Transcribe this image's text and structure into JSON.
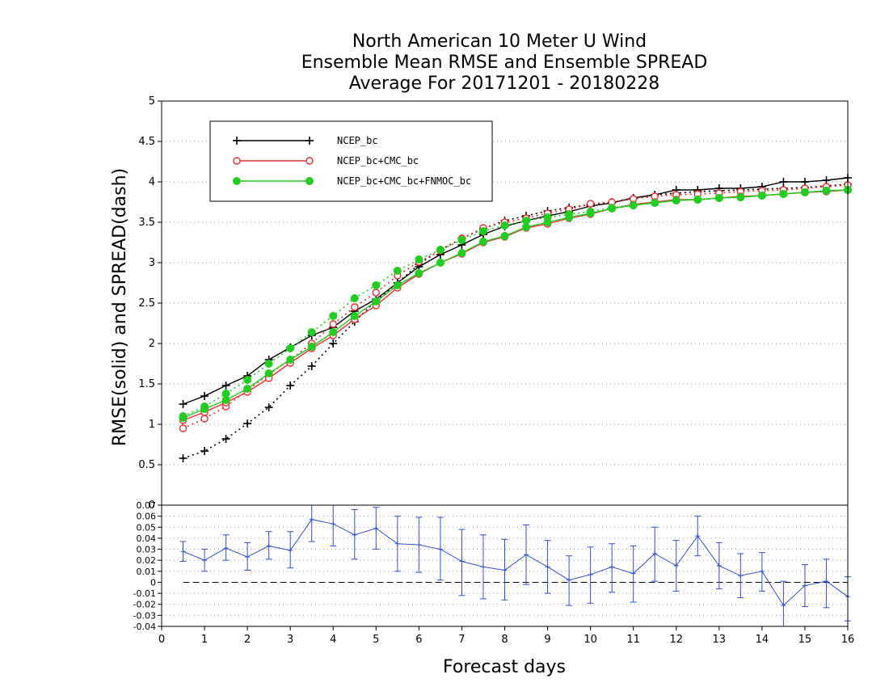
{
  "chart_data": [
    {
      "type": "line",
      "title": [
        "North American 10 Meter U Wind",
        "Ensemble Mean RMSE and Ensemble SPREAD",
        "Average For 20171201 - 20180228"
      ],
      "ylabel": "RMSE(solid)  and  SPREAD(dash)",
      "xlabel": "Forecast days",
      "xlim": [
        0,
        16
      ],
      "ylim": [
        0,
        5
      ],
      "x_ticks": [
        "0",
        "1",
        "2",
        "3",
        "4",
        "5",
        "6",
        "7",
        "8",
        "9",
        "10",
        "11",
        "12",
        "13",
        "14",
        "15",
        "16"
      ],
      "y_ticks": [
        "0.5",
        "1",
        "1.5",
        "2",
        "2.5",
        "3",
        "3.5",
        "4",
        "4.5",
        "5"
      ],
      "grid": "horizontal dotted",
      "legend_position": "top-left",
      "x": [
        0.5,
        1,
        1.5,
        2,
        2.5,
        3,
        3.5,
        4,
        4.5,
        5,
        5.5,
        6,
        6.5,
        7,
        7.5,
        8,
        8.5,
        9,
        9.5,
        10,
        10.5,
        11,
        11.5,
        12,
        12.5,
        13,
        13.5,
        14,
        14.5,
        15,
        15.5,
        16
      ],
      "series": [
        {
          "name": "NCEP_bc",
          "color": "#000000",
          "marker": "plus",
          "rmse": [
            1.25,
            1.35,
            1.48,
            1.6,
            1.8,
            1.95,
            2.1,
            2.2,
            2.4,
            2.55,
            2.75,
            2.95,
            3.1,
            3.22,
            3.35,
            3.45,
            3.52,
            3.58,
            3.63,
            3.7,
            3.74,
            3.8,
            3.84,
            3.9,
            3.9,
            3.92,
            3.92,
            3.94,
            4.0,
            4.0,
            4.02,
            4.05
          ],
          "spread": [
            0.58,
            0.67,
            0.82,
            1.01,
            1.21,
            1.48,
            1.72,
            2.0,
            2.27,
            2.53,
            2.75,
            2.98,
            3.16,
            3.3,
            3.42,
            3.52,
            3.58,
            3.64,
            3.68,
            3.72,
            3.75,
            3.8,
            3.84,
            3.86,
            3.88,
            3.89,
            3.9,
            3.91,
            3.92,
            3.93,
            3.95,
            3.97
          ]
        },
        {
          "name": "NCEP_bc+CMC_bc",
          "color": "#e83030",
          "marker": "open-circle",
          "rmse": [
            1.05,
            1.15,
            1.27,
            1.4,
            1.57,
            1.76,
            1.94,
            2.1,
            2.3,
            2.47,
            2.69,
            2.86,
            3.0,
            3.11,
            3.25,
            3.32,
            3.43,
            3.48,
            3.55,
            3.6,
            3.67,
            3.72,
            3.75,
            3.78,
            3.78,
            3.8,
            3.82,
            3.83,
            3.85,
            3.87,
            3.88,
            3.9
          ],
          "spread": [
            0.95,
            1.07,
            1.22,
            1.42,
            1.62,
            1.8,
            2.0,
            2.24,
            2.45,
            2.63,
            2.84,
            3.01,
            3.15,
            3.3,
            3.43,
            3.5,
            3.55,
            3.61,
            3.66,
            3.73,
            3.75,
            3.79,
            3.82,
            3.84,
            3.85,
            3.86,
            3.88,
            3.89,
            3.9,
            3.92,
            3.94,
            3.96
          ]
        },
        {
          "name": "NCEP_bc+CMC_bc+FNMOC_bc",
          "color": "#22cc22",
          "marker": "filled-circle",
          "rmse": [
            1.08,
            1.19,
            1.3,
            1.44,
            1.63,
            1.8,
            1.96,
            2.14,
            2.34,
            2.52,
            2.72,
            2.87,
            3.0,
            3.12,
            3.26,
            3.33,
            3.44,
            3.5,
            3.56,
            3.61,
            3.67,
            3.71,
            3.74,
            3.77,
            3.78,
            3.8,
            3.81,
            3.83,
            3.85,
            3.87,
            3.89,
            3.9
          ],
          "spread": [
            1.1,
            1.22,
            1.38,
            1.55,
            1.75,
            1.94,
            2.14,
            2.34,
            2.56,
            2.72,
            2.9,
            3.04,
            3.16,
            3.28,
            3.39,
            3.46,
            3.52,
            3.56,
            3.6,
            3.63,
            3.68,
            3.71,
            3.74,
            3.77,
            3.78,
            3.8,
            3.81,
            3.83,
            3.85,
            3.87,
            3.89,
            3.9
          ]
        }
      ]
    },
    {
      "type": "line",
      "title": "",
      "xlim": [
        0,
        16
      ],
      "ylim": [
        -0.04,
        0.07
      ],
      "y_ticks": [
        "0.07",
        "0.06",
        "0.05",
        "0.04",
        "0.03",
        "0.02",
        "0.01",
        "0",
        "-0.01",
        "-0.02",
        "-0.03",
        "-0.04"
      ],
      "zero_line": "dashed",
      "error_bars": true,
      "color": "#3050d0",
      "x": [
        0.5,
        1,
        1.5,
        2,
        2.5,
        3,
        3.5,
        4,
        4.5,
        5,
        5.5,
        6,
        6.5,
        7,
        7.5,
        8,
        8.5,
        9,
        9.5,
        10,
        10.5,
        11,
        11.5,
        12,
        12.5,
        13,
        13.5,
        14,
        14.5,
        15,
        15.5,
        16
      ],
      "values": [
        0.028,
        0.02,
        0.031,
        0.023,
        0.033,
        0.029,
        0.057,
        0.053,
        0.043,
        0.049,
        0.035,
        0.034,
        0.03,
        0.019,
        0.014,
        0.011,
        0.025,
        0.014,
        0.002,
        0.007,
        0.014,
        0.008,
        0.026,
        0.015,
        0.042,
        0.015,
        0.006,
        0.01,
        -0.021,
        -0.003,
        0.001,
        -0.013
      ],
      "err_upper": [
        0.037,
        0.03,
        0.043,
        0.036,
        0.046,
        0.046,
        0.078,
        0.077,
        0.066,
        0.068,
        0.06,
        0.059,
        0.059,
        0.048,
        0.043,
        0.039,
        0.052,
        0.038,
        0.024,
        0.032,
        0.035,
        0.033,
        0.05,
        0.038,
        0.06,
        0.036,
        0.026,
        0.027,
        0.001,
        0.016,
        0.021,
        0.005
      ],
      "err_lower": [
        0.019,
        0.01,
        0.02,
        0.011,
        0.021,
        0.013,
        0.037,
        0.033,
        0.021,
        0.03,
        0.01,
        0.009,
        0.002,
        -0.012,
        -0.015,
        -0.016,
        -0.002,
        -0.01,
        -0.021,
        -0.019,
        -0.009,
        -0.018,
        0.001,
        -0.008,
        0.024,
        -0.006,
        -0.014,
        -0.008,
        -0.045,
        -0.022,
        -0.023,
        -0.035
      ]
    }
  ]
}
